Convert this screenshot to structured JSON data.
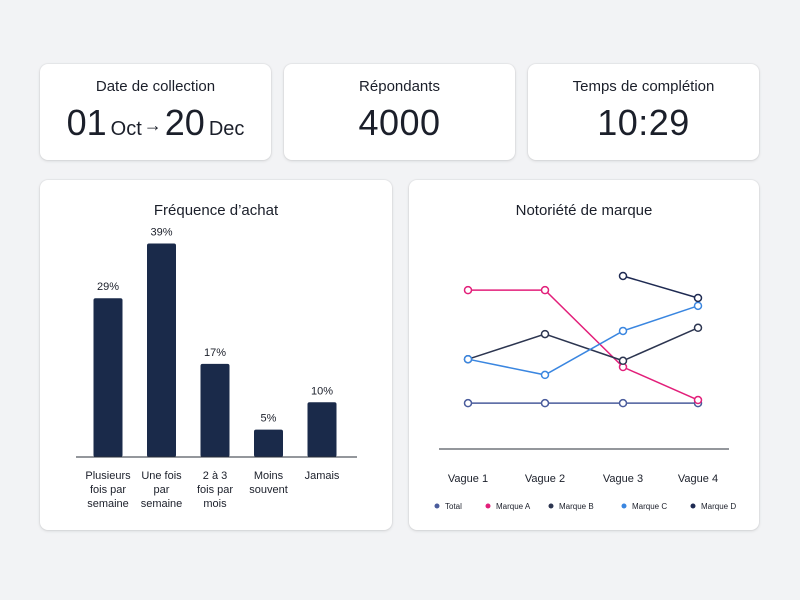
{
  "kpis": {
    "dates": {
      "title": "Date de collection",
      "start_day": "01",
      "start_month": "Oct",
      "arrow": "→",
      "end_day": "20",
      "end_month": "Dec"
    },
    "respondents": {
      "title": "Répondants",
      "value": "4000"
    },
    "completion": {
      "title": "Temps de complétion",
      "value": "10:29"
    }
  },
  "chart_data": [
    {
      "type": "bar",
      "title": "Fréquence d’achat",
      "categories": [
        [
          "Plusieurs",
          "fois par",
          "semaine"
        ],
        [
          "Une fois",
          "par",
          "semaine"
        ],
        [
          "2 à 3",
          "fois par",
          "mois"
        ],
        [
          "Moins",
          "souvent"
        ],
        [
          "Jamais"
        ]
      ],
      "values": [
        29,
        39,
        17,
        5,
        10
      ],
      "labels": [
        "29%",
        "39%",
        "17%",
        "5%",
        "10%"
      ],
      "ylim": [
        0,
        40
      ],
      "color": "#1a2a4a"
    },
    {
      "type": "line",
      "title": "Notoriété de marque",
      "categories": [
        "Vague 1",
        "Vague 2",
        "Vague 3",
        "Vague 4"
      ],
      "ylim": [
        0,
        100
      ],
      "legend": "bottom",
      "series": [
        {
          "name": "Total",
          "color": "#4a5c9c",
          "values": [
            12,
            12,
            12,
            12
          ]
        },
        {
          "name": "Marque A",
          "color": "#e21f7a",
          "values": [
            84,
            84,
            35,
            14
          ]
        },
        {
          "name": "Marque B",
          "color": "#2c3550",
          "values": [
            40,
            56,
            39,
            60
          ]
        },
        {
          "name": "Marque C",
          "color": "#3a86e0",
          "values": [
            40,
            30,
            58,
            74
          ]
        },
        {
          "name": "Marque D",
          "color": "#1e2a52",
          "values": [
            null,
            null,
            93,
            79
          ]
        }
      ]
    }
  ]
}
